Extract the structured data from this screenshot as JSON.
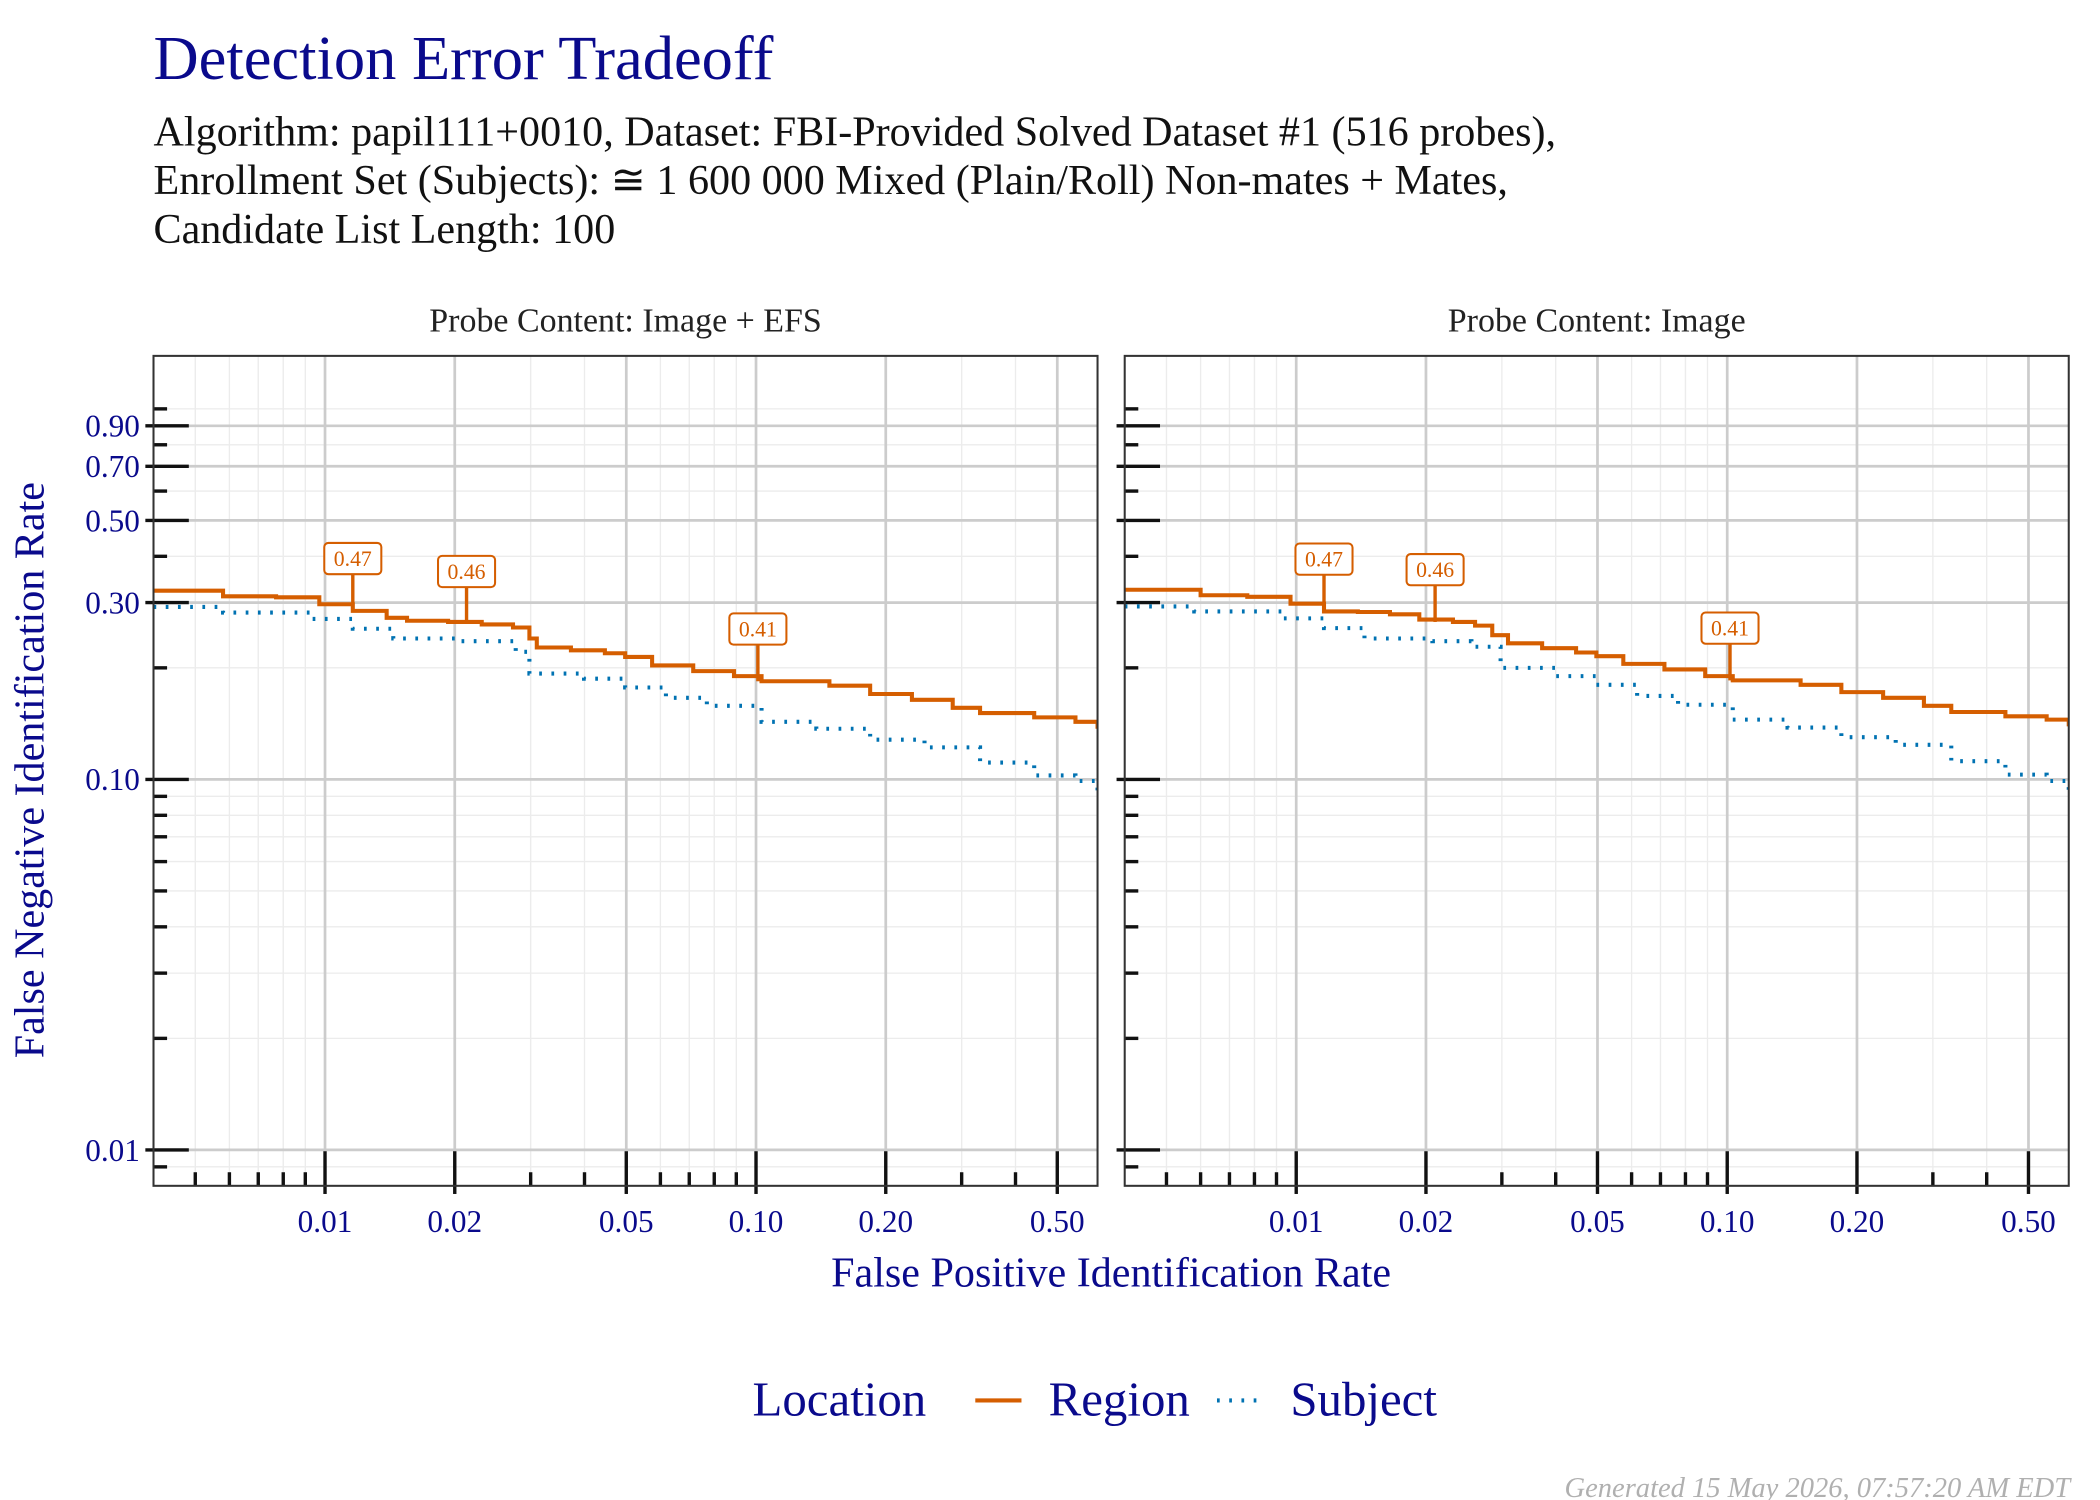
{
  "figure": {
    "title": "Detection Error Tradeoff",
    "subtitle": [
      "Algorithm: papil111+0010, Dataset: FBI-Provided Solved Dataset #1 (516 probes),",
      "Enrollment Set (Subjects): ≅ 1 600 000 Mixed (Plain/Roll) Non-mates + Mates,",
      "Candidate List Length: 100"
    ],
    "xlabel": "False Positive Identification Rate",
    "ylabel": "False Negative Identification Rate",
    "legend_title": "Location",
    "legend_position": "bottom",
    "footer": "Generated 15 May 2026, 07:57:20 AM EDT"
  },
  "chart_data": [
    {
      "type": "line",
      "step": true,
      "title": "Probe Content: Image + EFS",
      "log_x": true,
      "log_y": true,
      "grid": true,
      "xlim": [
        0.004,
        0.62
      ],
      "ylim": [
        0.008,
        1.39
      ],
      "xticks": [
        0.01,
        0.02,
        0.05,
        {
          "value": 0.1,
          "label": "0.10"
        },
        {
          "value": 0.2,
          "label": "0.20"
        },
        {
          "value": 0.5,
          "label": "0.50"
        }
      ],
      "yticks": [
        0.01,
        {
          "value": 0.1,
          "label": "0.10"
        },
        {
          "value": 0.3,
          "label": "0.30"
        },
        {
          "value": 0.5,
          "label": "0.50"
        },
        {
          "value": 0.7,
          "label": "0.70"
        },
        {
          "value": 0.9,
          "label": "0.90"
        }
      ],
      "xminor": [
        0.005,
        0.006,
        0.007,
        0.008,
        0.009,
        0.03,
        0.04,
        0.06,
        0.07,
        0.08,
        0.09,
        0.3,
        0.4
      ],
      "yminor": [
        0.009,
        0.02,
        0.03,
        0.04,
        0.05,
        0.06,
        0.07,
        0.08,
        0.09,
        0.2,
        0.4,
        0.6,
        0.8,
        1
      ],
      "series": [
        {
          "name": "Region",
          "color": "#D55E00",
          "dash": "solid",
          "x": [
            0.004,
            0.0058,
            0.0077,
            0.0097,
            0.0116,
            0.0139,
            0.0155,
            0.0193,
            0.0231,
            0.0273,
            0.0298,
            0.031,
            0.0372,
            0.0446,
            0.0497,
            0.0574,
            0.0715,
            0.0889,
            0.103,
            0.148,
            0.184,
            0.23,
            0.286,
            0.331,
            0.442,
            0.551,
            0.62
          ],
          "values": [
            0.323,
            0.312,
            0.31,
            0.297,
            0.285,
            0.273,
            0.268,
            0.266,
            0.262,
            0.257,
            0.24,
            0.227,
            0.223,
            0.219,
            0.214,
            0.203,
            0.196,
            0.19,
            0.184,
            0.179,
            0.17,
            0.164,
            0.156,
            0.151,
            0.147,
            0.143,
            0.137
          ]
        },
        {
          "name": "Subject",
          "color": "#0072B2",
          "dash": "dotted",
          "x": [
            0.004,
            0.0058,
            0.0093,
            0.0116,
            0.0144,
            0.0207,
            0.0277,
            0.0298,
            0.0399,
            0.0497,
            0.0618,
            0.0769,
            0.103,
            0.138,
            0.184,
            0.246,
            0.331,
            0.442,
            0.551,
            0.62
          ],
          "values": [
            0.292,
            0.282,
            0.271,
            0.255,
            0.24,
            0.236,
            0.221,
            0.193,
            0.187,
            0.177,
            0.166,
            0.158,
            0.143,
            0.137,
            0.128,
            0.122,
            0.111,
            0.1025,
            0.099,
            0.0896
          ]
        }
      ],
      "annotations": [
        {
          "x": 0.0116,
          "y": 0.285,
          "label": "0.47"
        },
        {
          "x": 0.0213,
          "y": 0.263,
          "label": "0.46"
        },
        {
          "x": 0.101,
          "y": 0.184,
          "label": "0.41"
        }
      ]
    },
    {
      "type": "line",
      "step": true,
      "title": "Probe Content: Image",
      "log_x": true,
      "log_y": true,
      "grid": true,
      "y_tick_labels": false,
      "xlim": [
        0.004,
        0.62
      ],
      "ylim": [
        0.008,
        1.39
      ],
      "xticks": [
        0.01,
        0.02,
        0.05,
        {
          "value": 0.1,
          "label": "0.10"
        },
        {
          "value": 0.2,
          "label": "0.20"
        },
        {
          "value": 0.5,
          "label": "0.50"
        }
      ],
      "yticks": [
        0.01,
        0.1,
        0.3,
        0.5,
        0.7,
        0.9
      ],
      "xminor": [
        0.005,
        0.006,
        0.007,
        0.008,
        0.009,
        0.03,
        0.04,
        0.06,
        0.07,
        0.08,
        0.09,
        0.3,
        0.4
      ],
      "yminor": [
        0.009,
        0.02,
        0.03,
        0.04,
        0.05,
        0.06,
        0.07,
        0.08,
        0.09,
        0.2,
        0.4,
        0.6,
        0.8,
        1
      ],
      "series": [
        {
          "name": "Region",
          "color": "#D55E00",
          "dash": "solid",
          "x": [
            0.004,
            0.006,
            0.0077,
            0.0097,
            0.0116,
            0.0139,
            0.0165,
            0.0193,
            0.0231,
            0.026,
            0.0285,
            0.031,
            0.0372,
            0.0446,
            0.0497,
            0.0574,
            0.0715,
            0.0889,
            0.103,
            0.148,
            0.184,
            0.23,
            0.286,
            0.331,
            0.442,
            0.551,
            0.62
          ],
          "values": [
            0.325,
            0.314,
            0.311,
            0.298,
            0.284,
            0.283,
            0.279,
            0.27,
            0.266,
            0.26,
            0.245,
            0.233,
            0.226,
            0.22,
            0.215,
            0.205,
            0.198,
            0.19,
            0.185,
            0.18,
            0.172,
            0.166,
            0.158,
            0.152,
            0.148,
            0.145,
            0.139
          ]
        },
        {
          "name": "Subject",
          "color": "#0072B2",
          "dash": "dotted",
          "x": [
            0.004,
            0.0058,
            0.0093,
            0.0116,
            0.0144,
            0.0207,
            0.0255,
            0.0298,
            0.0399,
            0.0497,
            0.0618,
            0.0769,
            0.103,
            0.138,
            0.184,
            0.246,
            0.331,
            0.442,
            0.551,
            0.62
          ],
          "values": [
            0.293,
            0.284,
            0.272,
            0.256,
            0.24,
            0.236,
            0.228,
            0.2,
            0.19,
            0.18,
            0.168,
            0.159,
            0.145,
            0.138,
            0.13,
            0.124,
            0.112,
            0.103,
            0.099,
            0.0905
          ]
        }
      ],
      "annotations": [
        {
          "x": 0.0116,
          "y": 0.284,
          "label": "0.47"
        },
        {
          "x": 0.021,
          "y": 0.266,
          "label": "0.46"
        },
        {
          "x": 0.1015,
          "y": 0.185,
          "label": "0.41"
        }
      ]
    }
  ]
}
